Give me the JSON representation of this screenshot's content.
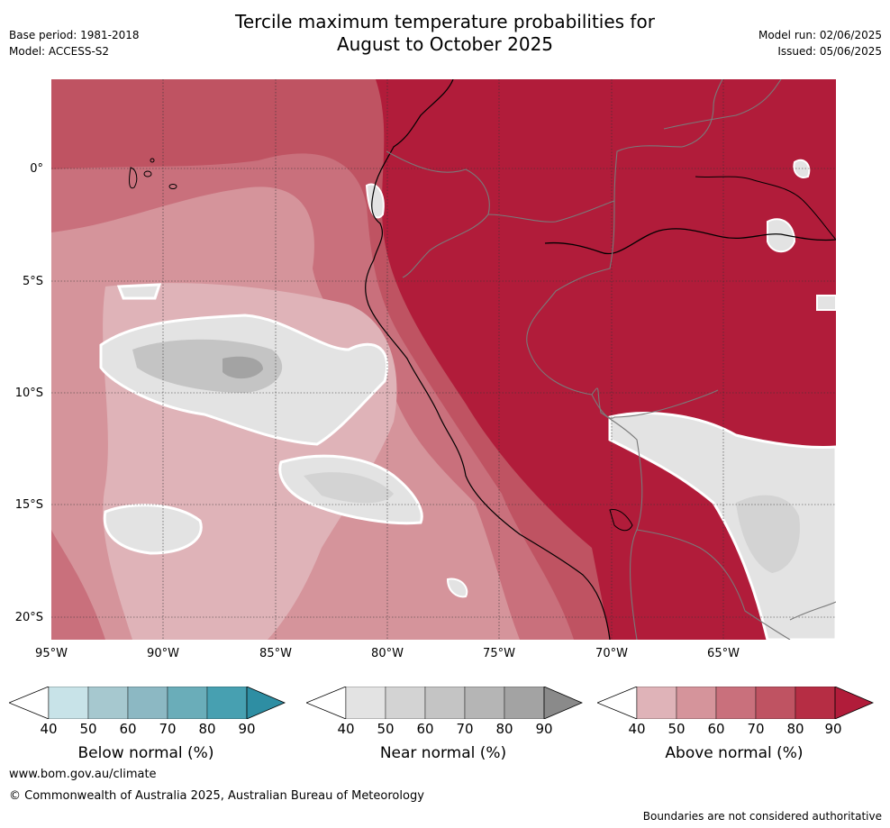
{
  "title": "Tercile maximum temperature probabilities for\nAugust to October 2025",
  "title_line1": "Tercile maximum temperature probabilities for",
  "title_line2": "August to October 2025",
  "meta_left": [
    "Base period: 1981-2018",
    "Model: ACCESS-S2"
  ],
  "meta_right": [
    "Model run: 02/06/2025",
    "Issued: 05/06/2025"
  ],
  "map": {
    "lat_ticks": [
      "0°",
      "5°S",
      "10°S",
      "15°S",
      "20°S"
    ],
    "lon_ticks": [
      "95°W",
      "90°W",
      "85°W",
      "80°W",
      "75°W",
      "70°W",
      "65°W"
    ],
    "colors": {
      "above": [
        "#dfb3b8",
        "#d5949b",
        "#c9707c",
        "#bf5362",
        "#b62d44",
        "#b11c3a"
      ],
      "near": [
        "#e3e3e3",
        "#d3d3d3",
        "#c4c4c4",
        "#b5b5b5",
        "#a3a3a3",
        "#8a8a8a"
      ],
      "below": [
        "#c8e3e8",
        "#a6c8cf",
        "#8cb8c3",
        "#6aadb9",
        "#47a0b1",
        "#2e8ea3"
      ]
    }
  },
  "colorbars": [
    {
      "title": "Below normal (%)",
      "ticks": [
        "40",
        "50",
        "60",
        "70",
        "80",
        "90"
      ]
    },
    {
      "title": "Near normal (%)",
      "ticks": [
        "40",
        "50",
        "60",
        "70",
        "80",
        "90"
      ]
    },
    {
      "title": "Above normal (%)",
      "ticks": [
        "40",
        "50",
        "60",
        "70",
        "80",
        "90"
      ]
    }
  ],
  "footer": {
    "url": "www.bom.gov.au/climate",
    "copyright": "© Commonwealth of Australia 2025, Australian Bureau of Meteorology",
    "note": "Boundaries are not considered authoritative"
  }
}
